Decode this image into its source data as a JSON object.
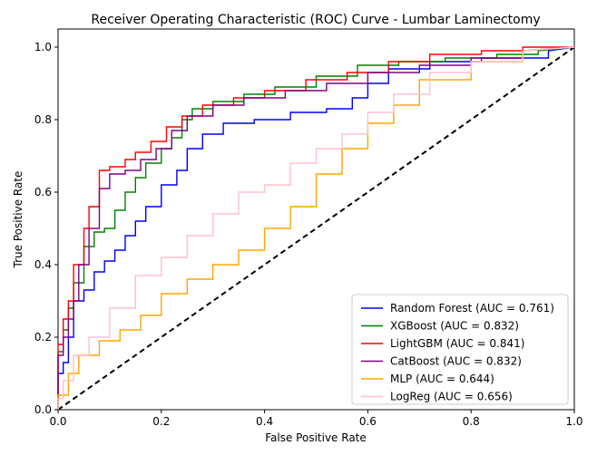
{
  "chart_data": {
    "type": "line",
    "title": "Receiver Operating Characteristic (ROC) Curve - Lumbar Laminectomy",
    "xlabel": "False Positive Rate",
    "ylabel": "True Positive Rate",
    "xlim": [
      0.0,
      1.0
    ],
    "ylim": [
      0.0,
      1.05
    ],
    "xticks": [
      0.0,
      0.2,
      0.4,
      0.6,
      0.8,
      1.0
    ],
    "yticks": [
      0.0,
      0.2,
      0.4,
      0.6,
      0.8,
      1.0
    ],
    "xtick_labels": [
      "0.0",
      "0.2",
      "0.4",
      "0.6",
      "0.8",
      "1.0"
    ],
    "ytick_labels": [
      "0.0",
      "0.2",
      "0.4",
      "0.6",
      "0.8",
      "1.0"
    ],
    "grid": false,
    "legend_position": "lower-right",
    "series": [
      {
        "name": "Random Forest (AUC = 0.761)",
        "color": "#0000ff",
        "x": [
          0,
          0,
          0.01,
          0.01,
          0.02,
          0.02,
          0.03,
          0.03,
          0.05,
          0.05,
          0.07,
          0.07,
          0.09,
          0.09,
          0.11,
          0.11,
          0.13,
          0.13,
          0.15,
          0.15,
          0.17,
          0.17,
          0.2,
          0.2,
          0.23,
          0.23,
          0.25,
          0.25,
          0.28,
          0.28,
          0.32,
          0.32,
          0.38,
          0.38,
          0.45,
          0.45,
          0.52,
          0.52,
          0.57,
          0.57,
          0.6,
          0.6,
          0.64,
          0.64,
          0.72,
          0.72,
          0.82,
          0.82,
          0.95,
          0.95,
          1.0
        ],
        "y": [
          0,
          0.1,
          0.1,
          0.13,
          0.13,
          0.2,
          0.2,
          0.3,
          0.3,
          0.33,
          0.33,
          0.38,
          0.38,
          0.41,
          0.41,
          0.44,
          0.44,
          0.48,
          0.48,
          0.52,
          0.52,
          0.56,
          0.56,
          0.62,
          0.62,
          0.66,
          0.66,
          0.72,
          0.72,
          0.76,
          0.76,
          0.79,
          0.79,
          0.8,
          0.8,
          0.82,
          0.82,
          0.83,
          0.83,
          0.86,
          0.86,
          0.9,
          0.9,
          0.94,
          0.94,
          0.96,
          0.96,
          0.97,
          0.97,
          0.99,
          1.0
        ]
      },
      {
        "name": "XGBoost (AUC = 0.832)",
        "color": "#008000",
        "x": [
          0,
          0,
          0.01,
          0.01,
          0.02,
          0.02,
          0.03,
          0.03,
          0.05,
          0.05,
          0.07,
          0.07,
          0.09,
          0.09,
          0.11,
          0.11,
          0.13,
          0.13,
          0.15,
          0.15,
          0.17,
          0.17,
          0.2,
          0.2,
          0.22,
          0.22,
          0.24,
          0.24,
          0.26,
          0.26,
          0.3,
          0.3,
          0.36,
          0.36,
          0.42,
          0.42,
          0.5,
          0.5,
          0.58,
          0.58,
          0.66,
          0.66,
          0.75,
          0.75,
          0.85,
          0.85,
          0.93,
          0.93,
          1.0
        ],
        "y": [
          0,
          0.16,
          0.16,
          0.22,
          0.22,
          0.28,
          0.28,
          0.35,
          0.35,
          0.45,
          0.45,
          0.49,
          0.49,
          0.5,
          0.5,
          0.55,
          0.55,
          0.6,
          0.6,
          0.64,
          0.64,
          0.68,
          0.68,
          0.72,
          0.72,
          0.75,
          0.75,
          0.8,
          0.8,
          0.83,
          0.83,
          0.85,
          0.85,
          0.87,
          0.87,
          0.89,
          0.89,
          0.92,
          0.92,
          0.95,
          0.95,
          0.96,
          0.96,
          0.97,
          0.97,
          0.98,
          0.98,
          0.99,
          1.0
        ]
      },
      {
        "name": "LightGBM (AUC = 0.841)",
        "color": "#ff0000",
        "x": [
          0,
          0,
          0.01,
          0.01,
          0.02,
          0.02,
          0.03,
          0.03,
          0.05,
          0.05,
          0.06,
          0.06,
          0.08,
          0.08,
          0.1,
          0.1,
          0.13,
          0.13,
          0.15,
          0.15,
          0.18,
          0.18,
          0.21,
          0.21,
          0.24,
          0.24,
          0.28,
          0.28,
          0.34,
          0.34,
          0.4,
          0.4,
          0.48,
          0.48,
          0.56,
          0.56,
          0.64,
          0.64,
          0.72,
          0.72,
          0.82,
          0.82,
          0.9,
          0.9,
          1.0
        ],
        "y": [
          0,
          0.18,
          0.18,
          0.25,
          0.25,
          0.3,
          0.3,
          0.4,
          0.4,
          0.5,
          0.5,
          0.56,
          0.56,
          0.66,
          0.66,
          0.67,
          0.67,
          0.69,
          0.69,
          0.71,
          0.71,
          0.74,
          0.74,
          0.78,
          0.78,
          0.81,
          0.81,
          0.84,
          0.84,
          0.86,
          0.86,
          0.88,
          0.88,
          0.91,
          0.91,
          0.93,
          0.93,
          0.96,
          0.96,
          0.98,
          0.98,
          0.99,
          0.99,
          1.0,
          1.0
        ]
      },
      {
        "name": "CatBoost (AUC = 0.832)",
        "color": "#800080",
        "x": [
          0,
          0,
          0.01,
          0.01,
          0.02,
          0.02,
          0.03,
          0.03,
          0.04,
          0.04,
          0.06,
          0.06,
          0.08,
          0.08,
          0.1,
          0.1,
          0.13,
          0.13,
          0.16,
          0.16,
          0.19,
          0.19,
          0.22,
          0.22,
          0.25,
          0.25,
          0.3,
          0.3,
          0.36,
          0.36,
          0.44,
          0.44,
          0.52,
          0.52,
          0.6,
          0.6,
          0.7,
          0.7,
          0.8,
          0.8,
          0.9,
          0.9,
          1.0
        ],
        "y": [
          0,
          0.15,
          0.15,
          0.2,
          0.2,
          0.25,
          0.25,
          0.3,
          0.3,
          0.4,
          0.4,
          0.5,
          0.5,
          0.61,
          0.61,
          0.65,
          0.65,
          0.66,
          0.66,
          0.69,
          0.69,
          0.72,
          0.72,
          0.77,
          0.77,
          0.81,
          0.81,
          0.84,
          0.84,
          0.86,
          0.86,
          0.88,
          0.88,
          0.9,
          0.9,
          0.93,
          0.93,
          0.95,
          0.95,
          0.97,
          0.97,
          0.99,
          1.0
        ]
      },
      {
        "name": "MLP (AUC = 0.644)",
        "color": "#ffa500",
        "x": [
          0,
          0,
          0.02,
          0.02,
          0.04,
          0.04,
          0.08,
          0.08,
          0.12,
          0.12,
          0.16,
          0.16,
          0.2,
          0.2,
          0.25,
          0.25,
          0.3,
          0.3,
          0.35,
          0.35,
          0.4,
          0.4,
          0.45,
          0.45,
          0.5,
          0.5,
          0.55,
          0.55,
          0.6,
          0.6,
          0.65,
          0.65,
          0.7,
          0.7,
          0.8,
          0.8,
          0.9,
          0.9,
          1.0
        ],
        "y": [
          0,
          0.04,
          0.04,
          0.1,
          0.1,
          0.15,
          0.15,
          0.19,
          0.19,
          0.22,
          0.22,
          0.26,
          0.26,
          0.32,
          0.32,
          0.36,
          0.36,
          0.4,
          0.4,
          0.44,
          0.44,
          0.5,
          0.5,
          0.56,
          0.56,
          0.65,
          0.65,
          0.72,
          0.72,
          0.79,
          0.79,
          0.84,
          0.84,
          0.91,
          0.91,
          0.96,
          0.96,
          0.99,
          1.0
        ]
      },
      {
        "name": "LogReg (AUC = 0.656)",
        "color": "#ffc0cb",
        "x": [
          0,
          0,
          0.01,
          0.01,
          0.03,
          0.03,
          0.06,
          0.06,
          0.1,
          0.1,
          0.15,
          0.15,
          0.2,
          0.2,
          0.25,
          0.25,
          0.3,
          0.3,
          0.35,
          0.35,
          0.4,
          0.4,
          0.45,
          0.45,
          0.5,
          0.5,
          0.55,
          0.55,
          0.6,
          0.6,
          0.65,
          0.65,
          0.72,
          0.72,
          0.8,
          0.8,
          0.9,
          0.9,
          1.0
        ],
        "y": [
          0,
          0.03,
          0.03,
          0.08,
          0.08,
          0.15,
          0.15,
          0.2,
          0.2,
          0.28,
          0.28,
          0.37,
          0.37,
          0.42,
          0.42,
          0.48,
          0.48,
          0.54,
          0.54,
          0.6,
          0.6,
          0.62,
          0.62,
          0.68,
          0.68,
          0.72,
          0.72,
          0.76,
          0.76,
          0.82,
          0.82,
          0.87,
          0.87,
          0.93,
          0.93,
          0.96,
          0.96,
          0.99,
          1.0
        ]
      }
    ],
    "reference_line": {
      "x": [
        0,
        1
      ],
      "y": [
        0,
        1
      ],
      "color": "#000000",
      "style": "dashed"
    }
  }
}
